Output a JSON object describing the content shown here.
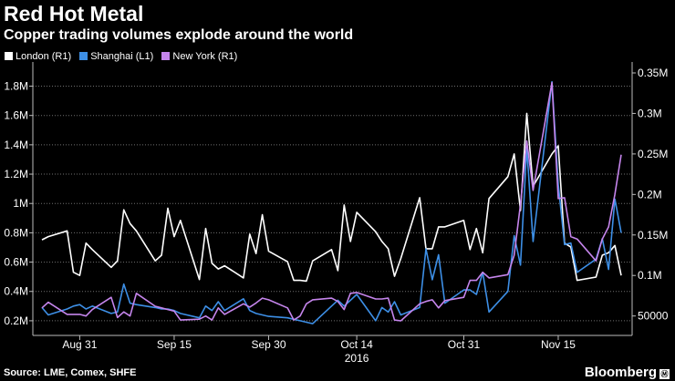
{
  "title": "Red Hot Metal",
  "subtitle": "Copper trading volumes explode around the world",
  "source": "Source: LME, Comex, SHFE",
  "brand": "Bloomberg",
  "brand_mark": "Ⓜ",
  "chart_data": {
    "type": "line",
    "x": [
      "2016-08-25",
      "2016-08-26",
      "2016-08-29",
      "2016-08-30",
      "2016-08-31",
      "2016-09-01",
      "2016-09-02",
      "2016-09-05",
      "2016-09-06",
      "2016-09-07",
      "2016-09-08",
      "2016-09-09",
      "2016-09-12",
      "2016-09-13",
      "2016-09-14",
      "2016-09-15",
      "2016-09-16",
      "2016-09-19",
      "2016-09-20",
      "2016-09-21",
      "2016-09-22",
      "2016-09-23",
      "2016-09-26",
      "2016-09-27",
      "2016-09-28",
      "2016-09-29",
      "2016-09-30",
      "2016-10-03",
      "2016-10-04",
      "2016-10-05",
      "2016-10-06",
      "2016-10-07",
      "2016-10-10",
      "2016-10-11",
      "2016-10-12",
      "2016-10-13",
      "2016-10-14",
      "2016-10-17",
      "2016-10-18",
      "2016-10-19",
      "2016-10-20",
      "2016-10-21",
      "2016-10-24",
      "2016-10-25",
      "2016-10-26",
      "2016-10-27",
      "2016-10-28",
      "2016-10-31",
      "2016-11-01",
      "2016-11-02",
      "2016-11-03",
      "2016-11-04",
      "2016-11-07",
      "2016-11-08",
      "2016-11-09",
      "2016-11-10",
      "2016-11-11",
      "2016-11-14",
      "2016-11-15",
      "2016-11-16",
      "2016-11-17",
      "2016-11-18",
      "2016-11-21",
      "2016-11-22",
      "2016-11-23",
      "2016-11-24",
      "2016-11-25"
    ],
    "x_ticks": [
      "Aug 31",
      "Sep 15",
      "Sep 30",
      "Oct 14",
      "Oct 31",
      "Nov 15"
    ],
    "x_tick_dates": [
      "2016-08-31",
      "2016-09-15",
      "2016-09-30",
      "2016-10-14",
      "2016-10-31",
      "2016-11-15"
    ],
    "x_year_label": "2016",
    "x_year_date": "2016-10-14",
    "left_axis": {
      "min": 0.1,
      "max": 1.94,
      "ticks": [
        0.2,
        0.4,
        0.6,
        0.8,
        1.0,
        1.2,
        1.4,
        1.6,
        1.8
      ],
      "labels": [
        "0.2M",
        "0.4M",
        "0.6M",
        "0.8M",
        "1M",
        "1.2M",
        "1.4M",
        "1.6M",
        "1.8M"
      ]
    },
    "right_axis": {
      "min": 0.026,
      "max": 0.359,
      "ticks": [
        0.05,
        0.1,
        0.15,
        0.2,
        0.25,
        0.3,
        0.35
      ],
      "labels": [
        "50000",
        "0.1M",
        "0.15M",
        "0.2M",
        "0.25M",
        "0.3M",
        "0.35M"
      ]
    },
    "grid": "horizontal-dotted",
    "legend_position": "top-left",
    "series": [
      {
        "name": "London (R1)",
        "axis": "right",
        "color": "#ffffff",
        "values": [
          0.144,
          0.148,
          0.155,
          0.104,
          0.1,
          0.14,
          0.132,
          0.11,
          0.118,
          0.181,
          0.164,
          0.155,
          0.118,
          0.125,
          0.183,
          0.148,
          0.168,
          0.095,
          0.158,
          0.115,
          0.108,
          0.112,
          0.097,
          0.151,
          0.127,
          0.175,
          0.13,
          0.117,
          0.094,
          0.094,
          0.093,
          0.118,
          0.132,
          0.106,
          0.187,
          0.142,
          0.178,
          0.154,
          0.142,
          0.133,
          0.099,
          0.121,
          0.196,
          0.133,
          0.133,
          0.16,
          0.16,
          0.168,
          0.132,
          0.158,
          0.128,
          0.195,
          0.222,
          0.25,
          0.18,
          0.3,
          0.21,
          0.25,
          0.26,
          0.14,
          0.135,
          0.094,
          0.098,
          0.125,
          0.128,
          0.137,
          0.1
        ]
      },
      {
        "name": "Shanghai (L1)",
        "axis": "left",
        "color": "#3d8fe6",
        "values": [
          0.29,
          0.24,
          0.28,
          0.3,
          0.31,
          0.28,
          0.3,
          0.25,
          0.26,
          0.45,
          0.32,
          0.31,
          0.29,
          0.28,
          0.28,
          0.27,
          0.25,
          0.22,
          0.3,
          0.27,
          0.33,
          0.27,
          0.35,
          0.27,
          0.25,
          0.24,
          0.23,
          0.22,
          0.21,
          0.2,
          0.19,
          0.18,
          0.3,
          0.34,
          0.3,
          0.34,
          0.38,
          0.2,
          0.29,
          0.26,
          0.33,
          0.24,
          0.29,
          0.69,
          0.48,
          0.65,
          0.32,
          0.41,
          0.41,
          0.38,
          0.53,
          0.26,
          0.4,
          0.78,
          0.58,
          1.38,
          0.74,
          1.83,
          1.13,
          0.72,
          0.73,
          0.53,
          0.62,
          0.76,
          0.55,
          1.03,
          0.8
        ]
      },
      {
        "name": "New York (R1)",
        "axis": "right",
        "color": "#c585ec",
        "values": [
          0.06,
          0.067,
          0.052,
          0.052,
          0.052,
          0.05,
          0.058,
          0.073,
          0.048,
          0.055,
          0.05,
          0.078,
          0.062,
          0.06,
          0.058,
          0.056,
          0.045,
          0.046,
          0.05,
          0.045,
          0.06,
          0.052,
          0.065,
          0.061,
          0.066,
          0.072,
          0.07,
          0.06,
          0.045,
          0.05,
          0.065,
          0.07,
          0.072,
          0.068,
          0.058,
          0.078,
          0.079,
          0.071,
          0.071,
          0.072,
          0.045,
          0.044,
          0.065,
          0.068,
          0.07,
          0.06,
          0.069,
          0.073,
          0.094,
          0.094,
          0.104,
          0.097,
          0.101,
          0.125,
          0.188,
          0.266,
          0.205,
          0.338,
          0.195,
          0.196,
          0.148,
          0.145,
          0.118,
          0.145,
          0.16,
          0.2,
          0.249
        ]
      }
    ]
  }
}
